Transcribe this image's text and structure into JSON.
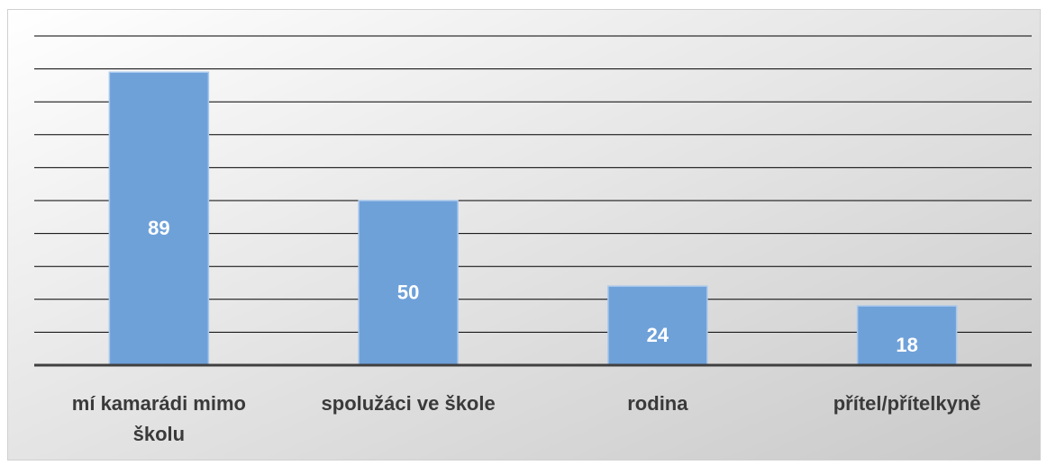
{
  "chart_data": {
    "type": "bar",
    "categories": [
      "mí kamarádi mimo školu",
      "spolužáci ve škole",
      "rodina",
      "přítel/přítelkyně"
    ],
    "values": [
      89,
      50,
      24,
      18
    ],
    "color": "#6fa1d9",
    "ylim": [
      0,
      100
    ],
    "yticks": [
      0,
      10,
      20,
      30,
      40,
      50,
      60,
      70,
      80,
      90,
      100
    ],
    "grid": true
  }
}
